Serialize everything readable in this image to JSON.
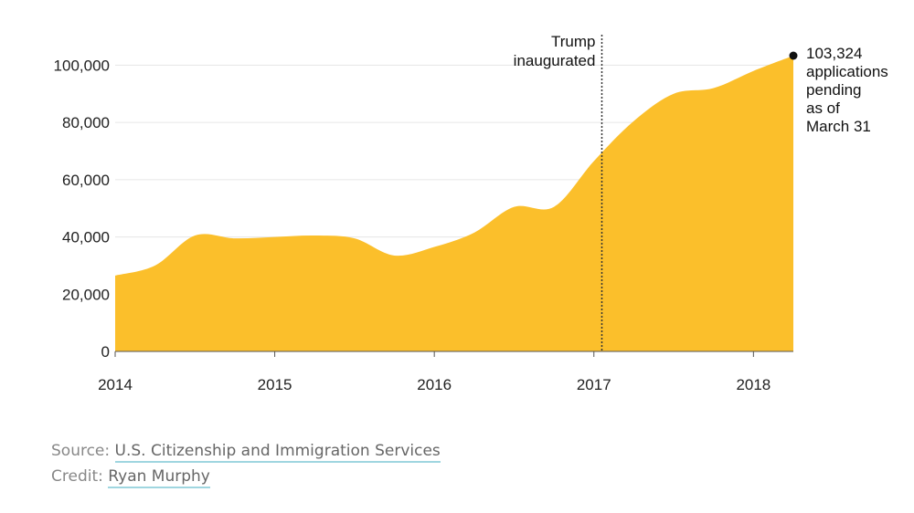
{
  "chart_data": {
    "type": "area",
    "x": [
      2014.0,
      2014.25,
      2014.5,
      2014.75,
      2015.0,
      2015.25,
      2015.5,
      2015.75,
      2016.0,
      2016.25,
      2016.5,
      2016.75,
      2017.0,
      2017.25,
      2017.5,
      2017.75,
      2018.0,
      2018.25
    ],
    "series": [
      {
        "values": [
          26500,
          30000,
          40500,
          39500,
          40000,
          40500,
          39500,
          33500,
          36500,
          41500,
          50500,
          50500,
          66500,
          80500,
          90000,
          92000,
          98000,
          103324
        ]
      }
    ],
    "xticks": [
      "2014",
      "2015",
      "2016",
      "2017",
      "2018"
    ],
    "yticks": [
      "0",
      "20,000",
      "40,000",
      "60,000",
      "80,000",
      "100,000"
    ],
    "xlim": [
      2014,
      2018.25
    ],
    "ylim": [
      0,
      103324
    ],
    "fill_color": "#fbbf2b",
    "grid": true,
    "marker_event": {
      "x": 2017.05,
      "label_lines": [
        "Trump",
        "inaugurated"
      ]
    },
    "end_annotation": {
      "label_lines": [
        "103,324",
        "applications",
        "pending",
        "as of",
        "March 31"
      ]
    }
  },
  "footer": {
    "source_prefix": "Source: ",
    "source_link": "U.S. Citizenship and Immigration Services",
    "credit_prefix": "Credit: ",
    "credit_link": "Ryan Murphy"
  }
}
